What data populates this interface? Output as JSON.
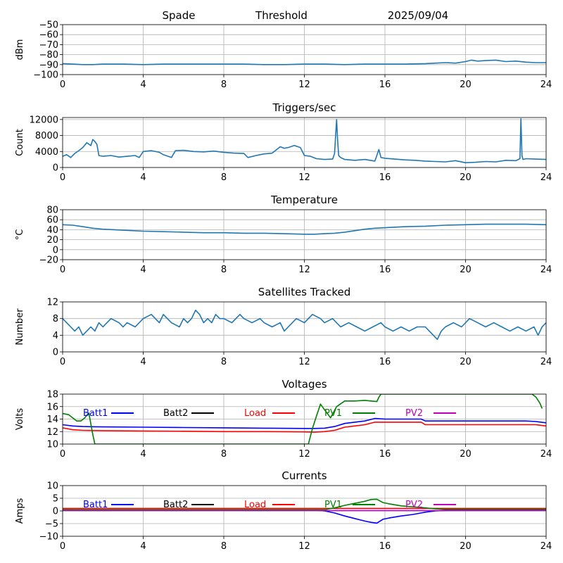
{
  "header": {
    "station": "Spade",
    "mode": "Threshold",
    "date": "2025/09/04"
  },
  "chart_data": [
    {
      "id": "dbm",
      "type": "line",
      "title": "",
      "xlabel": "",
      "ylabel": "dBm",
      "xlim": [
        0,
        24
      ],
      "ylim": [
        -100,
        -50
      ],
      "xticks": [
        0,
        4,
        8,
        12,
        16,
        20,
        24
      ],
      "yticks": [
        -100,
        -90,
        -80,
        -70,
        -60,
        -50
      ],
      "grid": true,
      "series": [
        {
          "color": "#1f77b4",
          "x": [
            0,
            0.5,
            1,
            1.5,
            2,
            3,
            4,
            5,
            6,
            7,
            8,
            9,
            10,
            11,
            12,
            13,
            14,
            15,
            16,
            17,
            18,
            18.5,
            19,
            19.5,
            20,
            20.3,
            20.6,
            21,
            21.5,
            22,
            22.5,
            23,
            23.5,
            24
          ],
          "y": [
            -89,
            -89.5,
            -90,
            -90,
            -89.5,
            -89.5,
            -90,
            -89.5,
            -89.5,
            -89.5,
            -89.5,
            -89.5,
            -90,
            -90,
            -89.5,
            -89.5,
            -90,
            -89.5,
            -89.5,
            -89.5,
            -89,
            -88.5,
            -88,
            -88.5,
            -87,
            -85.5,
            -86.5,
            -86,
            -85.5,
            -87,
            -86.5,
            -87.5,
            -88,
            -88
          ]
        }
      ]
    },
    {
      "id": "triggers",
      "type": "line",
      "title": "Triggers/sec",
      "xlabel": "",
      "ylabel": "Count",
      "xlim": [
        0,
        24
      ],
      "ylim": [
        0,
        12500
      ],
      "xticks": [
        0,
        4,
        8,
        12,
        16,
        20,
        24
      ],
      "yticks": [
        0,
        4000,
        8000,
        12000
      ],
      "grid": true,
      "series": [
        {
          "color": "#1f77b4",
          "x": [
            0,
            0.2,
            0.4,
            0.6,
            0.8,
            1.0,
            1.2,
            1.4,
            1.5,
            1.6,
            1.7,
            1.8,
            2.0,
            2.4,
            2.8,
            3.2,
            3.6,
            3.8,
            4.0,
            4.4,
            4.8,
            5.0,
            5.4,
            5.6,
            6.0,
            6.5,
            7.0,
            7.5,
            8.0,
            8.5,
            9.0,
            9.2,
            9.6,
            10.0,
            10.4,
            10.8,
            11.0,
            11.2,
            11.5,
            11.8,
            12.0,
            12.3,
            12.6,
            13.0,
            13.4,
            13.5,
            13.6,
            13.65,
            13.7,
            13.8,
            14.0,
            14.5,
            15.0,
            15.5,
            15.7,
            15.8,
            16.0,
            16.5,
            17.0,
            17.5,
            18.0,
            18.5,
            19.0,
            19.5,
            20.0,
            20.5,
            21.0,
            21.5,
            22.0,
            22.5,
            22.7,
            22.75,
            22.8,
            22.85,
            23.0,
            23.5,
            24.0
          ],
          "y": [
            2800,
            3200,
            2500,
            3500,
            4200,
            5000,
            6200,
            5500,
            7000,
            6500,
            5800,
            3000,
            2800,
            3000,
            2600,
            2800,
            3000,
            2500,
            4000,
            4200,
            3800,
            3200,
            2500,
            4200,
            4300,
            4000,
            3900,
            4100,
            3800,
            3600,
            3500,
            2500,
            3000,
            3400,
            3600,
            5200,
            4800,
            5000,
            5500,
            5000,
            3000,
            2800,
            2200,
            2000,
            2100,
            3500,
            12000,
            7000,
            3000,
            2500,
            2000,
            1800,
            2000,
            1600,
            4500,
            2500,
            2300,
            2100,
            1900,
            1800,
            1600,
            1500,
            1400,
            1700,
            1200,
            1300,
            1500,
            1400,
            1800,
            1700,
            2200,
            12200,
            3000,
            2000,
            2200,
            2100,
            2000
          ]
        }
      ]
    },
    {
      "id": "temperature",
      "type": "line",
      "title": "Temperature",
      "xlabel": "",
      "ylabel": "°C",
      "xlim": [
        0,
        24
      ],
      "ylim": [
        -20,
        80
      ],
      "xticks": [
        0,
        4,
        8,
        12,
        16,
        20,
        24
      ],
      "yticks": [
        -20,
        0,
        20,
        40,
        60,
        80
      ],
      "grid": true,
      "series": [
        {
          "color": "#1f77b4",
          "x": [
            0,
            0.5,
            1,
            1.5,
            2,
            3,
            4,
            5,
            6,
            7,
            8,
            9,
            10,
            11,
            12,
            12.5,
            13,
            13.5,
            14,
            14.5,
            15,
            15.5,
            16,
            17,
            18,
            19,
            20,
            21,
            22,
            23,
            24
          ],
          "y": [
            50,
            49,
            46,
            43,
            41,
            39,
            37,
            36,
            35,
            34,
            34,
            33,
            33,
            32,
            31,
            31,
            32,
            33,
            35,
            38,
            41,
            43,
            44,
            46,
            47,
            49,
            50,
            51,
            51,
            51,
            50
          ]
        }
      ]
    },
    {
      "id": "satellites",
      "type": "line",
      "title": "Satellites Tracked",
      "xlabel": "",
      "ylabel": "Number",
      "xlim": [
        0,
        24
      ],
      "ylim": [
        0,
        12
      ],
      "xticks": [
        0,
        4,
        8,
        12,
        16,
        20,
        24
      ],
      "yticks": [
        0,
        4,
        8,
        12
      ],
      "grid": true,
      "series": [
        {
          "color": "#1f77b4",
          "x": [
            0,
            0.2,
            0.4,
            0.6,
            0.8,
            1.0,
            1.2,
            1.4,
            1.6,
            1.8,
            2.0,
            2.2,
            2.4,
            2.8,
            3.0,
            3.2,
            3.6,
            4.0,
            4.4,
            4.6,
            4.8,
            5.0,
            5.2,
            5.4,
            5.8,
            6.0,
            6.2,
            6.4,
            6.6,
            6.8,
            7.0,
            7.2,
            7.4,
            7.6,
            7.8,
            8.0,
            8.4,
            8.8,
            9.0,
            9.4,
            9.8,
            10.0,
            10.4,
            10.8,
            11.0,
            11.2,
            11.6,
            12.0,
            12.4,
            12.8,
            13.0,
            13.4,
            13.8,
            14.2,
            14.6,
            15.0,
            15.4,
            15.8,
            16.0,
            16.4,
            16.8,
            17.2,
            17.6,
            18.0,
            18.2,
            18.4,
            18.6,
            18.8,
            19.0,
            19.4,
            19.8,
            20.2,
            20.6,
            21.0,
            21.4,
            21.8,
            22.2,
            22.6,
            23.0,
            23.4,
            23.6,
            23.8,
            24.0
          ],
          "y": [
            8,
            7,
            6,
            5,
            6,
            4,
            5,
            6,
            5,
            7,
            6,
            7,
            8,
            7,
            6,
            7,
            6,
            8,
            9,
            8,
            7,
            9,
            8,
            7,
            6,
            8,
            7,
            8,
            10,
            9,
            7,
            8,
            7,
            9,
            8,
            8,
            7,
            9,
            8,
            7,
            8,
            7,
            6,
            7,
            5,
            6,
            8,
            7,
            9,
            8,
            7,
            8,
            6,
            7,
            6,
            5,
            6,
            7,
            6,
            5,
            6,
            5,
            6,
            6,
            5,
            4,
            3,
            5,
            6,
            7,
            6,
            8,
            7,
            6,
            7,
            6,
            5,
            6,
            5,
            6,
            4,
            6,
            7
          ]
        }
      ]
    },
    {
      "id": "voltages",
      "type": "line",
      "title": "Voltages",
      "xlabel": "",
      "ylabel": "Volts",
      "xlim": [
        0,
        24
      ],
      "ylim": [
        10,
        18
      ],
      "xticks": [
        0,
        4,
        8,
        12,
        16,
        20,
        24
      ],
      "yticks": [
        10,
        12,
        14,
        16,
        18
      ],
      "grid": true,
      "legend_placement": "top",
      "series": [
        {
          "name": "Batt1",
          "color": "#0000ff",
          "x": [
            0,
            0.5,
            1,
            2,
            4,
            6,
            8,
            10,
            12,
            12.5,
            13,
            13.5,
            14,
            14.5,
            15,
            15.5,
            16,
            17,
            17.8,
            18,
            19,
            20,
            21,
            22,
            23,
            23.5,
            24
          ],
          "y": [
            13.1,
            12.9,
            12.8,
            12.75,
            12.7,
            12.65,
            12.6,
            12.55,
            12.5,
            12.5,
            12.55,
            12.8,
            13.3,
            13.5,
            13.7,
            14.1,
            14.0,
            14.0,
            14.0,
            13.7,
            13.7,
            13.7,
            13.7,
            13.7,
            13.7,
            13.6,
            13.4
          ]
        },
        {
          "name": "Batt2",
          "color": "#000000",
          "x": [],
          "y": []
        },
        {
          "name": "Load",
          "color": "#ff0000",
          "x": [
            0,
            0.5,
            1,
            2,
            4,
            6,
            8,
            10,
            12,
            12.5,
            13,
            13.5,
            14,
            14.5,
            15,
            15.5,
            16,
            17,
            17.8,
            18,
            19,
            20,
            21,
            22,
            23,
            23.5,
            24
          ],
          "y": [
            12.6,
            12.3,
            12.2,
            12.15,
            12.1,
            12.05,
            12.0,
            12.0,
            11.95,
            11.9,
            12.0,
            12.2,
            12.7,
            12.9,
            13.1,
            13.5,
            13.5,
            13.5,
            13.5,
            13.1,
            13.1,
            13.1,
            13.1,
            13.1,
            13.1,
            13.1,
            12.9
          ]
        },
        {
          "name": "PV1",
          "color": "#008000",
          "x": [
            0,
            0.3,
            0.5,
            0.7,
            0.9,
            1.1,
            1.3,
            1.5,
            1.6,
            12.2,
            12.4,
            12.6,
            12.8,
            13.0,
            13.3,
            13.6,
            14.0,
            14.5,
            15.0,
            15.3,
            15.6,
            15.7,
            15.8,
            23.3,
            23.5,
            23.7,
            23.8
          ],
          "y": [
            14.9,
            14.7,
            14.2,
            13.7,
            13.7,
            14.2,
            15.0,
            11.5,
            10.0,
            10.0,
            12.5,
            14.5,
            16.4,
            15.5,
            14.2,
            16.0,
            16.9,
            16.9,
            17.0,
            16.9,
            16.8,
            17.5,
            18.0,
            18.0,
            17.5,
            16.5,
            15.7
          ]
        },
        {
          "name": "PV2",
          "color": "#bf00bf",
          "x": [],
          "y": []
        }
      ]
    },
    {
      "id": "currents",
      "type": "line",
      "title": "Currents",
      "xlabel": "",
      "ylabel": "Amps",
      "xlim": [
        0,
        24
      ],
      "ylim": [
        -10,
        10
      ],
      "xticks": [
        0,
        4,
        8,
        12,
        16,
        20,
        24
      ],
      "yticks": [
        -10,
        -5,
        0,
        5,
        10
      ],
      "grid": true,
      "legend_placement": "top",
      "series": [
        {
          "name": "Batt1",
          "color": "#0000ff",
          "x": [
            0,
            2,
            4,
            6,
            8,
            10,
            12,
            12.5,
            13,
            13.5,
            14,
            14.5,
            15,
            15.3,
            15.6,
            15.9,
            16.2,
            16.8,
            17.4,
            17.8,
            18.0,
            18.5,
            19,
            20,
            22,
            24
          ],
          "y": [
            0.5,
            0.4,
            0.4,
            0.4,
            0.4,
            0.4,
            0.4,
            0.3,
            0,
            -0.8,
            -2.0,
            -3.0,
            -4.0,
            -4.5,
            -4.8,
            -3.3,
            -2.8,
            -2.0,
            -1.4,
            -0.8,
            -0.5,
            0,
            0.2,
            0.4,
            0.4,
            0.4
          ]
        },
        {
          "name": "Batt2",
          "color": "#000000",
          "x": [],
          "y": []
        },
        {
          "name": "Load",
          "color": "#ff0000",
          "x": [
            0,
            2,
            4,
            8,
            12,
            16,
            20,
            24
          ],
          "y": [
            1.0,
            1.0,
            1.0,
            1.0,
            1.0,
            1.0,
            1.0,
            1.0
          ]
        },
        {
          "name": "PV1",
          "color": "#008000",
          "x": [
            0,
            2,
            4,
            8,
            12,
            13,
            13.5,
            14,
            14.5,
            15,
            15.3,
            15.6,
            15.9,
            16.2,
            16.8,
            17.4,
            17.8,
            18.0,
            18.5,
            19,
            20,
            24
          ],
          "y": [
            0.5,
            0.5,
            0.5,
            0.5,
            0.5,
            0.5,
            1.2,
            2.2,
            3.0,
            3.8,
            4.5,
            4.6,
            3.3,
            2.8,
            2.0,
            1.6,
            1.4,
            1.2,
            0.8,
            0.6,
            0.6,
            0.6
          ]
        },
        {
          "name": "PV2",
          "color": "#bf00bf",
          "x": [
            0,
            4,
            8,
            12,
            16,
            20,
            24
          ],
          "y": [
            0.1,
            0.1,
            0.1,
            0.1,
            0.1,
            0.1,
            0.1
          ]
        }
      ]
    }
  ]
}
